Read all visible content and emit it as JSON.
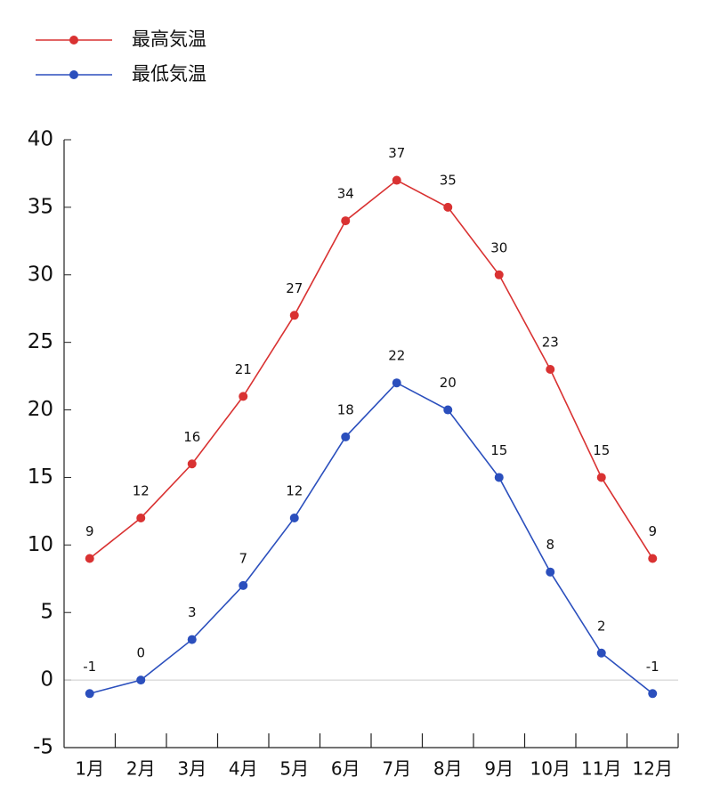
{
  "chart_data": {
    "type": "line",
    "categories": [
      "1月",
      "2月",
      "3月",
      "4月",
      "5月",
      "6月",
      "7月",
      "8月",
      "9月",
      "10月",
      "11月",
      "12月"
    ],
    "series": [
      {
        "name": "最高気温",
        "color": "#d93232",
        "values": [
          9,
          12,
          16,
          21,
          27,
          34,
          37,
          35,
          30,
          23,
          15,
          9
        ]
      },
      {
        "name": "最低気温",
        "color": "#2b4fbd",
        "values": [
          -1,
          0,
          3,
          7,
          12,
          18,
          22,
          20,
          15,
          8,
          2,
          -1
        ]
      }
    ],
    "ylim": [
      -5,
      40
    ],
    "yticks": [
      -5,
      0,
      5,
      10,
      15,
      20,
      25,
      30,
      35,
      40
    ],
    "zero_line": true,
    "legend": "top-left",
    "data_labels": true
  }
}
